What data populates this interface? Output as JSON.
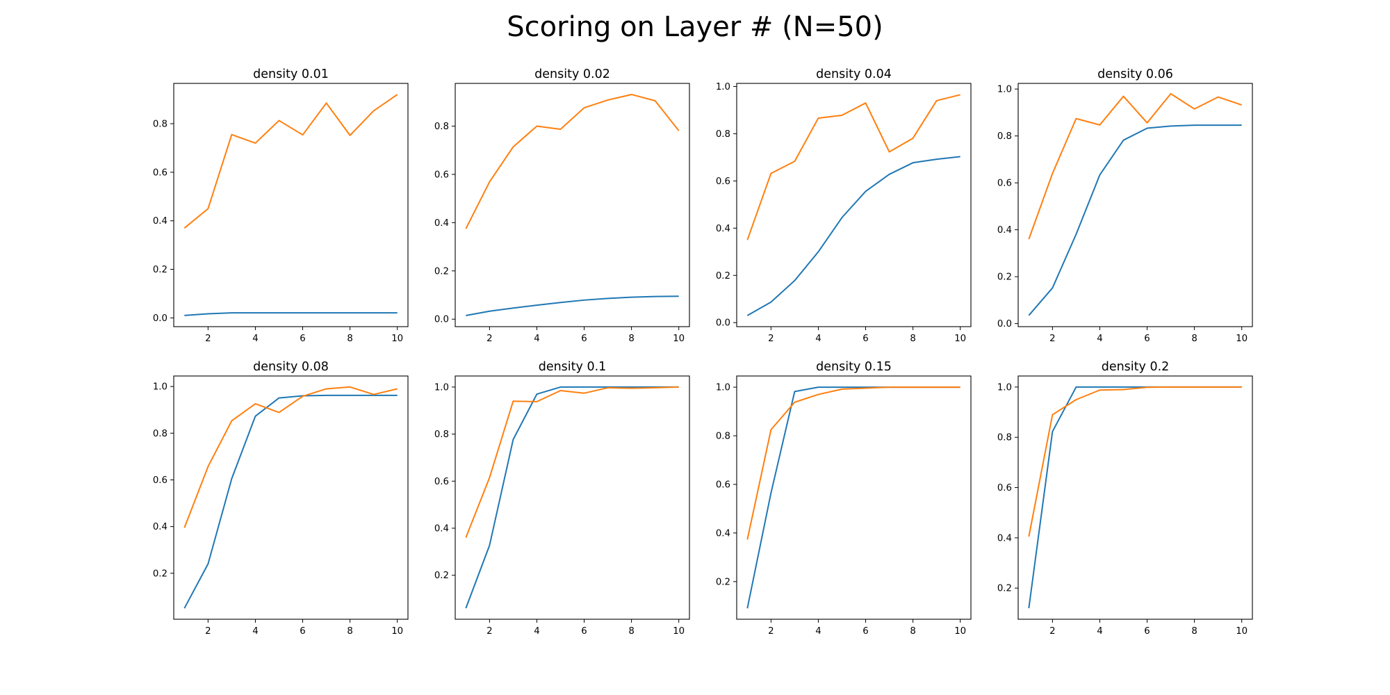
{
  "figure": {
    "title": "Scoring on Layer # (N=50)",
    "colors": {
      "series_1": "#1f77b4",
      "series_2": "#ff7f0e"
    }
  },
  "chart_data": [
    {
      "type": "line",
      "title": "density 0.01",
      "x": [
        1,
        2,
        3,
        4,
        5,
        6,
        7,
        8,
        9,
        10
      ],
      "xlim": [
        0.55,
        10.45
      ],
      "ylim": [
        -0.036,
        0.966
      ],
      "xticks": [
        2,
        4,
        6,
        8,
        10
      ],
      "yticks": [
        0.0,
        0.2,
        0.4,
        0.6,
        0.8
      ],
      "series": [
        {
          "color": "#1f77b4",
          "values": [
            0.01,
            0.017,
            0.021,
            0.021,
            0.021,
            0.021,
            0.021,
            0.021,
            0.021,
            0.021
          ]
        },
        {
          "color": "#ff7f0e",
          "values": [
            0.37,
            0.45,
            0.755,
            0.72,
            0.813,
            0.754,
            0.885,
            0.752,
            0.853,
            0.92
          ]
        }
      ]
    },
    {
      "type": "line",
      "title": "density 0.02",
      "x": [
        1,
        2,
        3,
        4,
        5,
        6,
        7,
        8,
        9,
        10
      ],
      "xlim": [
        0.55,
        10.45
      ],
      "ylim": [
        -0.031,
        0.977
      ],
      "xticks": [
        2,
        4,
        6,
        8,
        10
      ],
      "yticks": [
        0.0,
        0.2,
        0.4,
        0.6,
        0.8
      ],
      "series": [
        {
          "color": "#1f77b4",
          "values": [
            0.015,
            0.033,
            0.046,
            0.058,
            0.069,
            0.079,
            0.086,
            0.091,
            0.094,
            0.095
          ]
        },
        {
          "color": "#ff7f0e",
          "values": [
            0.375,
            0.569,
            0.714,
            0.8,
            0.787,
            0.876,
            0.908,
            0.931,
            0.905,
            0.781
          ]
        }
      ]
    },
    {
      "type": "line",
      "title": "density 0.04",
      "x": [
        1,
        2,
        3,
        4,
        5,
        6,
        7,
        8,
        9,
        10
      ],
      "xlim": [
        0.55,
        10.45
      ],
      "ylim": [
        -0.017,
        1.013
      ],
      "xticks": [
        2,
        4,
        6,
        8,
        10
      ],
      "yticks": [
        0.0,
        0.2,
        0.4,
        0.6,
        0.8,
        1.0
      ],
      "series": [
        {
          "color": "#1f77b4",
          "values": [
            0.03,
            0.087,
            0.178,
            0.3,
            0.445,
            0.556,
            0.628,
            0.677,
            0.692,
            0.703
          ]
        },
        {
          "color": "#ff7f0e",
          "values": [
            0.35,
            0.632,
            0.683,
            0.866,
            0.878,
            0.93,
            0.723,
            0.781,
            0.94,
            0.965
          ]
        }
      ]
    },
    {
      "type": "line",
      "title": "density 0.06",
      "x": [
        1,
        2,
        3,
        4,
        5,
        6,
        7,
        8,
        9,
        10
      ],
      "xlim": [
        0.55,
        10.45
      ],
      "ylim": [
        -0.013,
        1.024
      ],
      "xticks": [
        2,
        4,
        6,
        8,
        10
      ],
      "yticks": [
        0.0,
        0.2,
        0.4,
        0.6,
        0.8,
        1.0
      ],
      "series": [
        {
          "color": "#1f77b4",
          "values": [
            0.035,
            0.152,
            0.381,
            0.634,
            0.782,
            0.833,
            0.842,
            0.846,
            0.846,
            0.846
          ]
        },
        {
          "color": "#ff7f0e",
          "values": [
            0.36,
            0.64,
            0.874,
            0.847,
            0.969,
            0.856,
            0.98,
            0.915,
            0.966,
            0.932
          ]
        }
      ]
    },
    {
      "type": "line",
      "title": "density 0.08",
      "x": [
        1,
        2,
        3,
        4,
        5,
        6,
        7,
        8,
        9,
        10
      ],
      "xlim": [
        0.55,
        10.45
      ],
      "ylim": [
        0.003,
        1.045
      ],
      "xticks": [
        2,
        4,
        6,
        8,
        10
      ],
      "yticks": [
        0.2,
        0.4,
        0.6,
        0.8,
        1.0
      ],
      "series": [
        {
          "color": "#1f77b4",
          "values": [
            0.05,
            0.24,
            0.605,
            0.873,
            0.951,
            0.96,
            0.962,
            0.962,
            0.962,
            0.962
          ]
        },
        {
          "color": "#ff7f0e",
          "values": [
            0.395,
            0.657,
            0.853,
            0.926,
            0.889,
            0.958,
            0.99,
            0.998,
            0.966,
            0.99
          ]
        }
      ]
    },
    {
      "type": "line",
      "title": "density 0.1",
      "x": [
        1,
        2,
        3,
        4,
        5,
        6,
        7,
        8,
        9,
        10
      ],
      "xlim": [
        0.55,
        10.45
      ],
      "ylim": [
        0.013,
        1.047
      ],
      "xticks": [
        2,
        4,
        6,
        8,
        10
      ],
      "yticks": [
        0.2,
        0.4,
        0.6,
        0.8,
        1.0
      ],
      "series": [
        {
          "color": "#1f77b4",
          "values": [
            0.06,
            0.327,
            0.777,
            0.97,
            1.0,
            1.0,
            1.0,
            1.0,
            1.0,
            1.0
          ]
        },
        {
          "color": "#ff7f0e",
          "values": [
            0.36,
            0.615,
            0.94,
            0.938,
            0.985,
            0.974,
            0.997,
            0.995,
            0.997,
            1.0
          ]
        }
      ]
    },
    {
      "type": "line",
      "title": "density 0.15",
      "x": [
        1,
        2,
        3,
        4,
        5,
        6,
        7,
        8,
        9,
        10
      ],
      "xlim": [
        0.55,
        10.45
      ],
      "ylim": [
        0.045,
        1.046
      ],
      "xticks": [
        2,
        4,
        6,
        8,
        10
      ],
      "yticks": [
        0.2,
        0.4,
        0.6,
        0.8,
        1.0
      ],
      "series": [
        {
          "color": "#1f77b4",
          "values": [
            0.09,
            0.565,
            0.982,
            1.0,
            1.0,
            1.0,
            1.0,
            1.0,
            1.0,
            1.0
          ]
        },
        {
          "color": "#ff7f0e",
          "values": [
            0.373,
            0.825,
            0.938,
            0.97,
            0.992,
            0.996,
            1.0,
            1.0,
            1.0,
            1.0
          ]
        }
      ]
    },
    {
      "type": "line",
      "title": "density 0.2",
      "x": [
        1,
        2,
        3,
        4,
        5,
        6,
        7,
        8,
        9,
        10
      ],
      "xlim": [
        0.55,
        10.45
      ],
      "ylim": [
        0.076,
        1.044
      ],
      "xticks": [
        2,
        4,
        6,
        8,
        10
      ],
      "yticks": [
        0.2,
        0.4,
        0.6,
        0.8,
        1.0
      ],
      "series": [
        {
          "color": "#1f77b4",
          "values": [
            0.12,
            0.823,
            1.0,
            1.0,
            1.0,
            1.0,
            1.0,
            1.0,
            1.0,
            1.0
          ]
        },
        {
          "color": "#ff7f0e",
          "values": [
            0.405,
            0.89,
            0.95,
            0.988,
            0.99,
            0.999,
            1.0,
            1.0,
            1.0,
            1.0
          ]
        }
      ]
    }
  ]
}
